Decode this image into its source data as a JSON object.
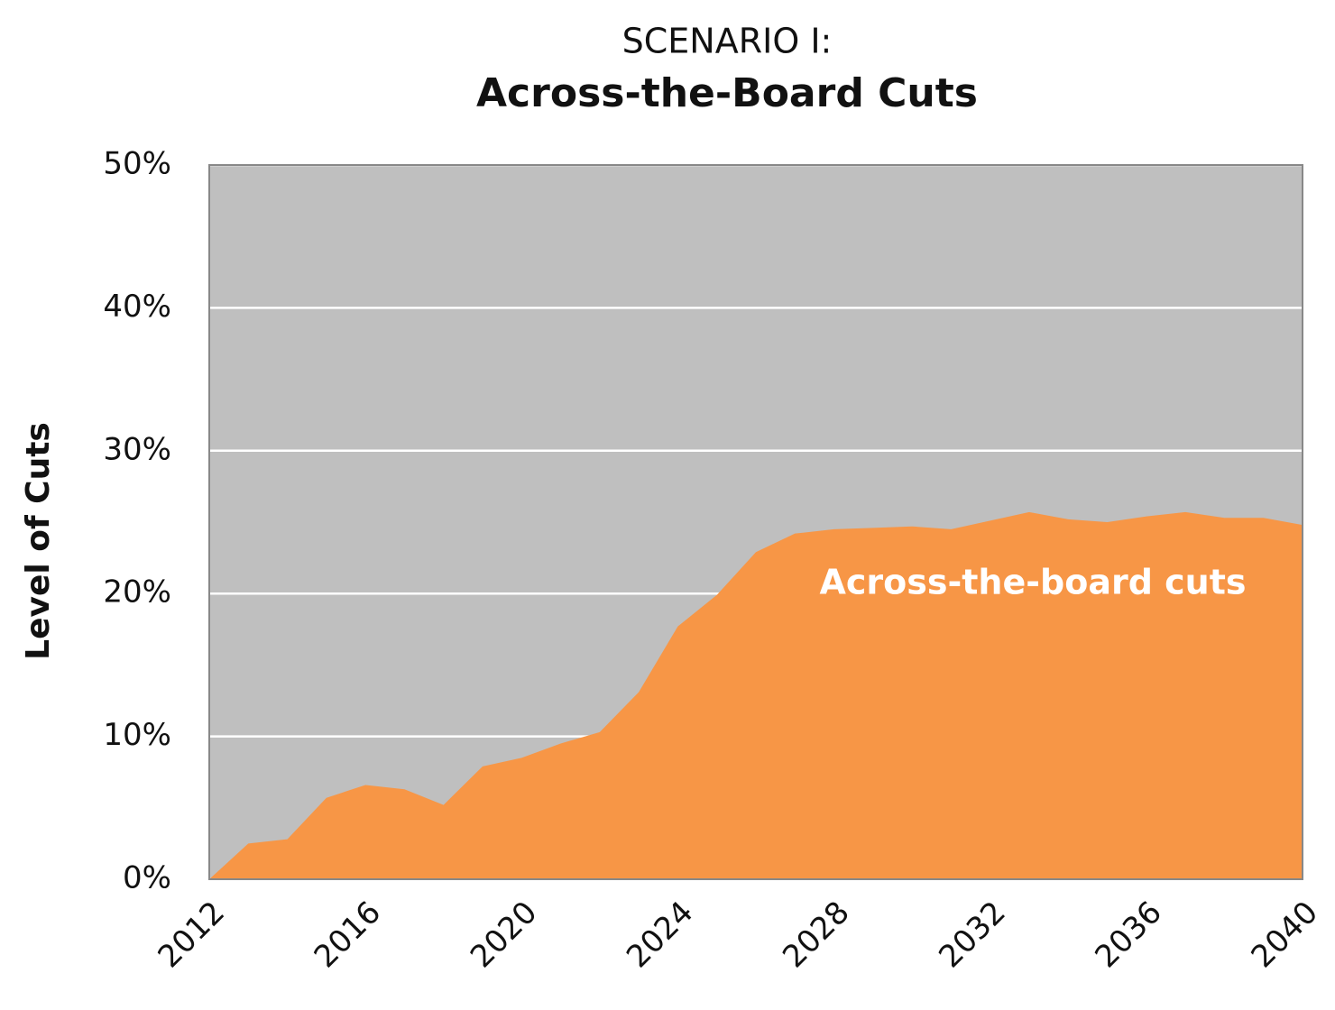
{
  "chart_data": {
    "type": "area",
    "title": "SCENARIO I:",
    "subtitle": "Across-the-Board Cuts",
    "y_label": "Level of Cuts",
    "x": [
      2012,
      2013,
      2014,
      2015,
      2016,
      2017,
      2018,
      2019,
      2020,
      2021,
      2022,
      2023,
      2024,
      2025,
      2026,
      2027,
      2028,
      2029,
      2030,
      2031,
      2032,
      2033,
      2034,
      2035,
      2036,
      2037,
      2038,
      2039,
      2040
    ],
    "series": [
      {
        "name": "Across-the-board cuts",
        "color": "#f79646",
        "values": [
          0,
          2.5,
          2.8,
          5.7,
          6.6,
          6.3,
          5.2,
          7.9,
          8.5,
          9.5,
          10.3,
          13.1,
          17.7,
          19.9,
          22.9,
          24.2,
          24.5,
          24.6,
          24.7,
          24.5,
          25.1,
          25.7,
          25.2,
          25.0,
          25.4,
          25.7,
          25.3,
          25.3,
          24.8
        ]
      }
    ],
    "xlim": [
      2012,
      2040
    ],
    "xticks": [
      2012,
      2016,
      2020,
      2024,
      2028,
      2032,
      2036,
      2040
    ],
    "ylim": [
      0,
      50
    ],
    "yticks": [
      {
        "value": 0,
        "label": "0%"
      },
      {
        "value": 10,
        "label": "10%"
      },
      {
        "value": 20,
        "label": "20%"
      },
      {
        "value": 30,
        "label": "30%"
      },
      {
        "value": 40,
        "label": "40%"
      },
      {
        "value": 50,
        "label": "50%"
      }
    ],
    "grid": true
  }
}
